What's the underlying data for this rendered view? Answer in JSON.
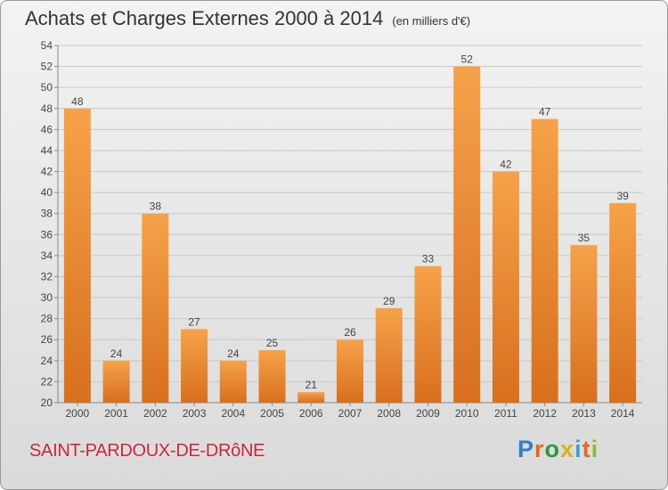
{
  "header": {
    "title": "Achats et Charges Externes 2000 à 2014",
    "subtitle": "(en milliers d'€)"
  },
  "footer": {
    "location": "SAINT-PARDOUX-DE-DRôNE",
    "logo": "Proxiti"
  },
  "colors": {
    "bar_light": "#f6a24a",
    "bar_dark": "#d86f1e",
    "location_text": "#c8283c"
  },
  "chart_data": {
    "type": "bar",
    "title": "Achats et Charges Externes 2000 à 2014",
    "subtitle": "(en milliers d'€)",
    "categories": [
      "2000",
      "2001",
      "2002",
      "2003",
      "2004",
      "2005",
      "2006",
      "2007",
      "2008",
      "2009",
      "2010",
      "2011",
      "2012",
      "2013",
      "2014"
    ],
    "values": [
      48,
      24,
      38,
      27,
      24,
      25,
      21,
      26,
      29,
      33,
      52,
      42,
      47,
      35,
      39
    ],
    "ylim": [
      20,
      54
    ],
    "ytick_step": 2,
    "grid": true,
    "data_labels": true,
    "xlabel": "",
    "ylabel": ""
  }
}
